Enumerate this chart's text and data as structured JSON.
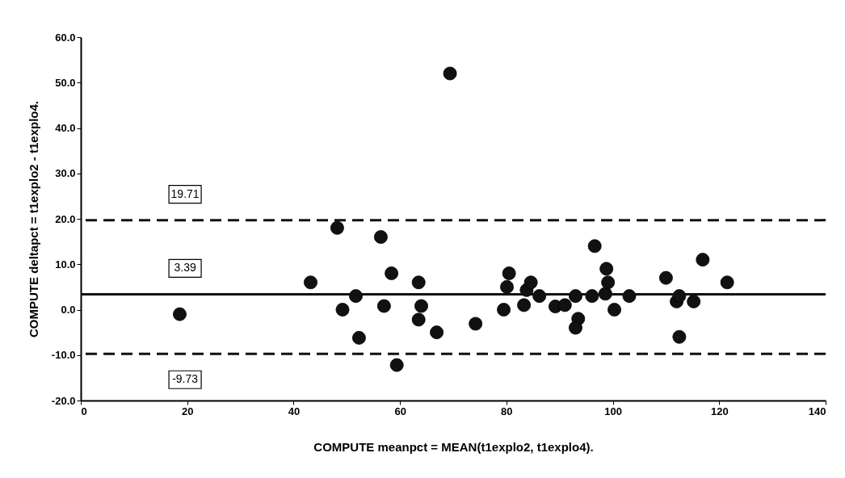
{
  "chart_data": {
    "type": "scatter",
    "xlabel": "COMPUTE meanpct = MEAN(t1explo2, t1explo4).",
    "ylabel": "COMPUTE deltapct = t1explo2 - t1explo4.",
    "x": [
      18.6,
      43.2,
      48.2,
      49.2,
      51.7,
      52.3,
      56.4,
      57.0,
      58.4,
      59.4,
      63.5,
      64.0,
      63.5,
      66.9,
      69.4,
      74.2,
      79.5,
      80.1,
      80.5,
      83.3,
      83.8,
      84.6,
      86.2,
      89.2,
      91.0,
      93.0,
      93.5,
      93.0,
      96.1,
      96.6,
      98.6,
      99.1,
      98.8,
      100.3,
      103.1,
      110.0,
      112.0,
      112.5,
      112.5,
      115.2,
      116.9,
      121.5
    ],
    "series": [
      {
        "color": "#111111",
        "values": [
          -1,
          6,
          18,
          0,
          3,
          -6.2,
          16,
          0.8,
          8,
          -12.2,
          6,
          0.8,
          -2.2,
          -5,
          52,
          -3.1,
          0,
          5,
          8,
          1,
          4.3,
          6,
          3,
          0.7,
          1,
          3,
          -2,
          -4,
          3,
          14,
          3.5,
          6,
          9,
          0,
          3,
          7,
          1.8,
          3,
          -6,
          1.8,
          11,
          6
        ]
      }
    ],
    "xlim": [
      0,
      140
    ],
    "xticks": [
      0,
      20,
      40,
      60,
      80,
      100,
      120,
      140
    ],
    "ylim": [
      -20,
      60
    ],
    "yticks": [
      {
        "value": -20,
        "label": "-20.0"
      },
      {
        "value": -10,
        "label": "-10.0"
      },
      {
        "value": 0,
        "label": "0.0"
      },
      {
        "value": 10,
        "label": "10.0"
      },
      {
        "value": 20,
        "label": "20.0"
      },
      {
        "value": 30,
        "label": "30.0"
      },
      {
        "value": 40,
        "label": "40.0"
      },
      {
        "value": 50,
        "label": "50.0"
      },
      {
        "value": 60,
        "label": "60.0"
      }
    ],
    "ref_lines": [
      {
        "axis": "y",
        "value": 19.71,
        "label": "19.71",
        "line_style": "dashed",
        "color": "#111111"
      },
      {
        "axis": "y",
        "value": 3.39,
        "label": "3.39",
        "line_style": "solid",
        "color": "#111111"
      },
      {
        "axis": "y",
        "value": -9.73,
        "label": "-9.73",
        "line_style": "dashed",
        "color": "#111111"
      }
    ],
    "marker": "circle",
    "grid": false
  }
}
